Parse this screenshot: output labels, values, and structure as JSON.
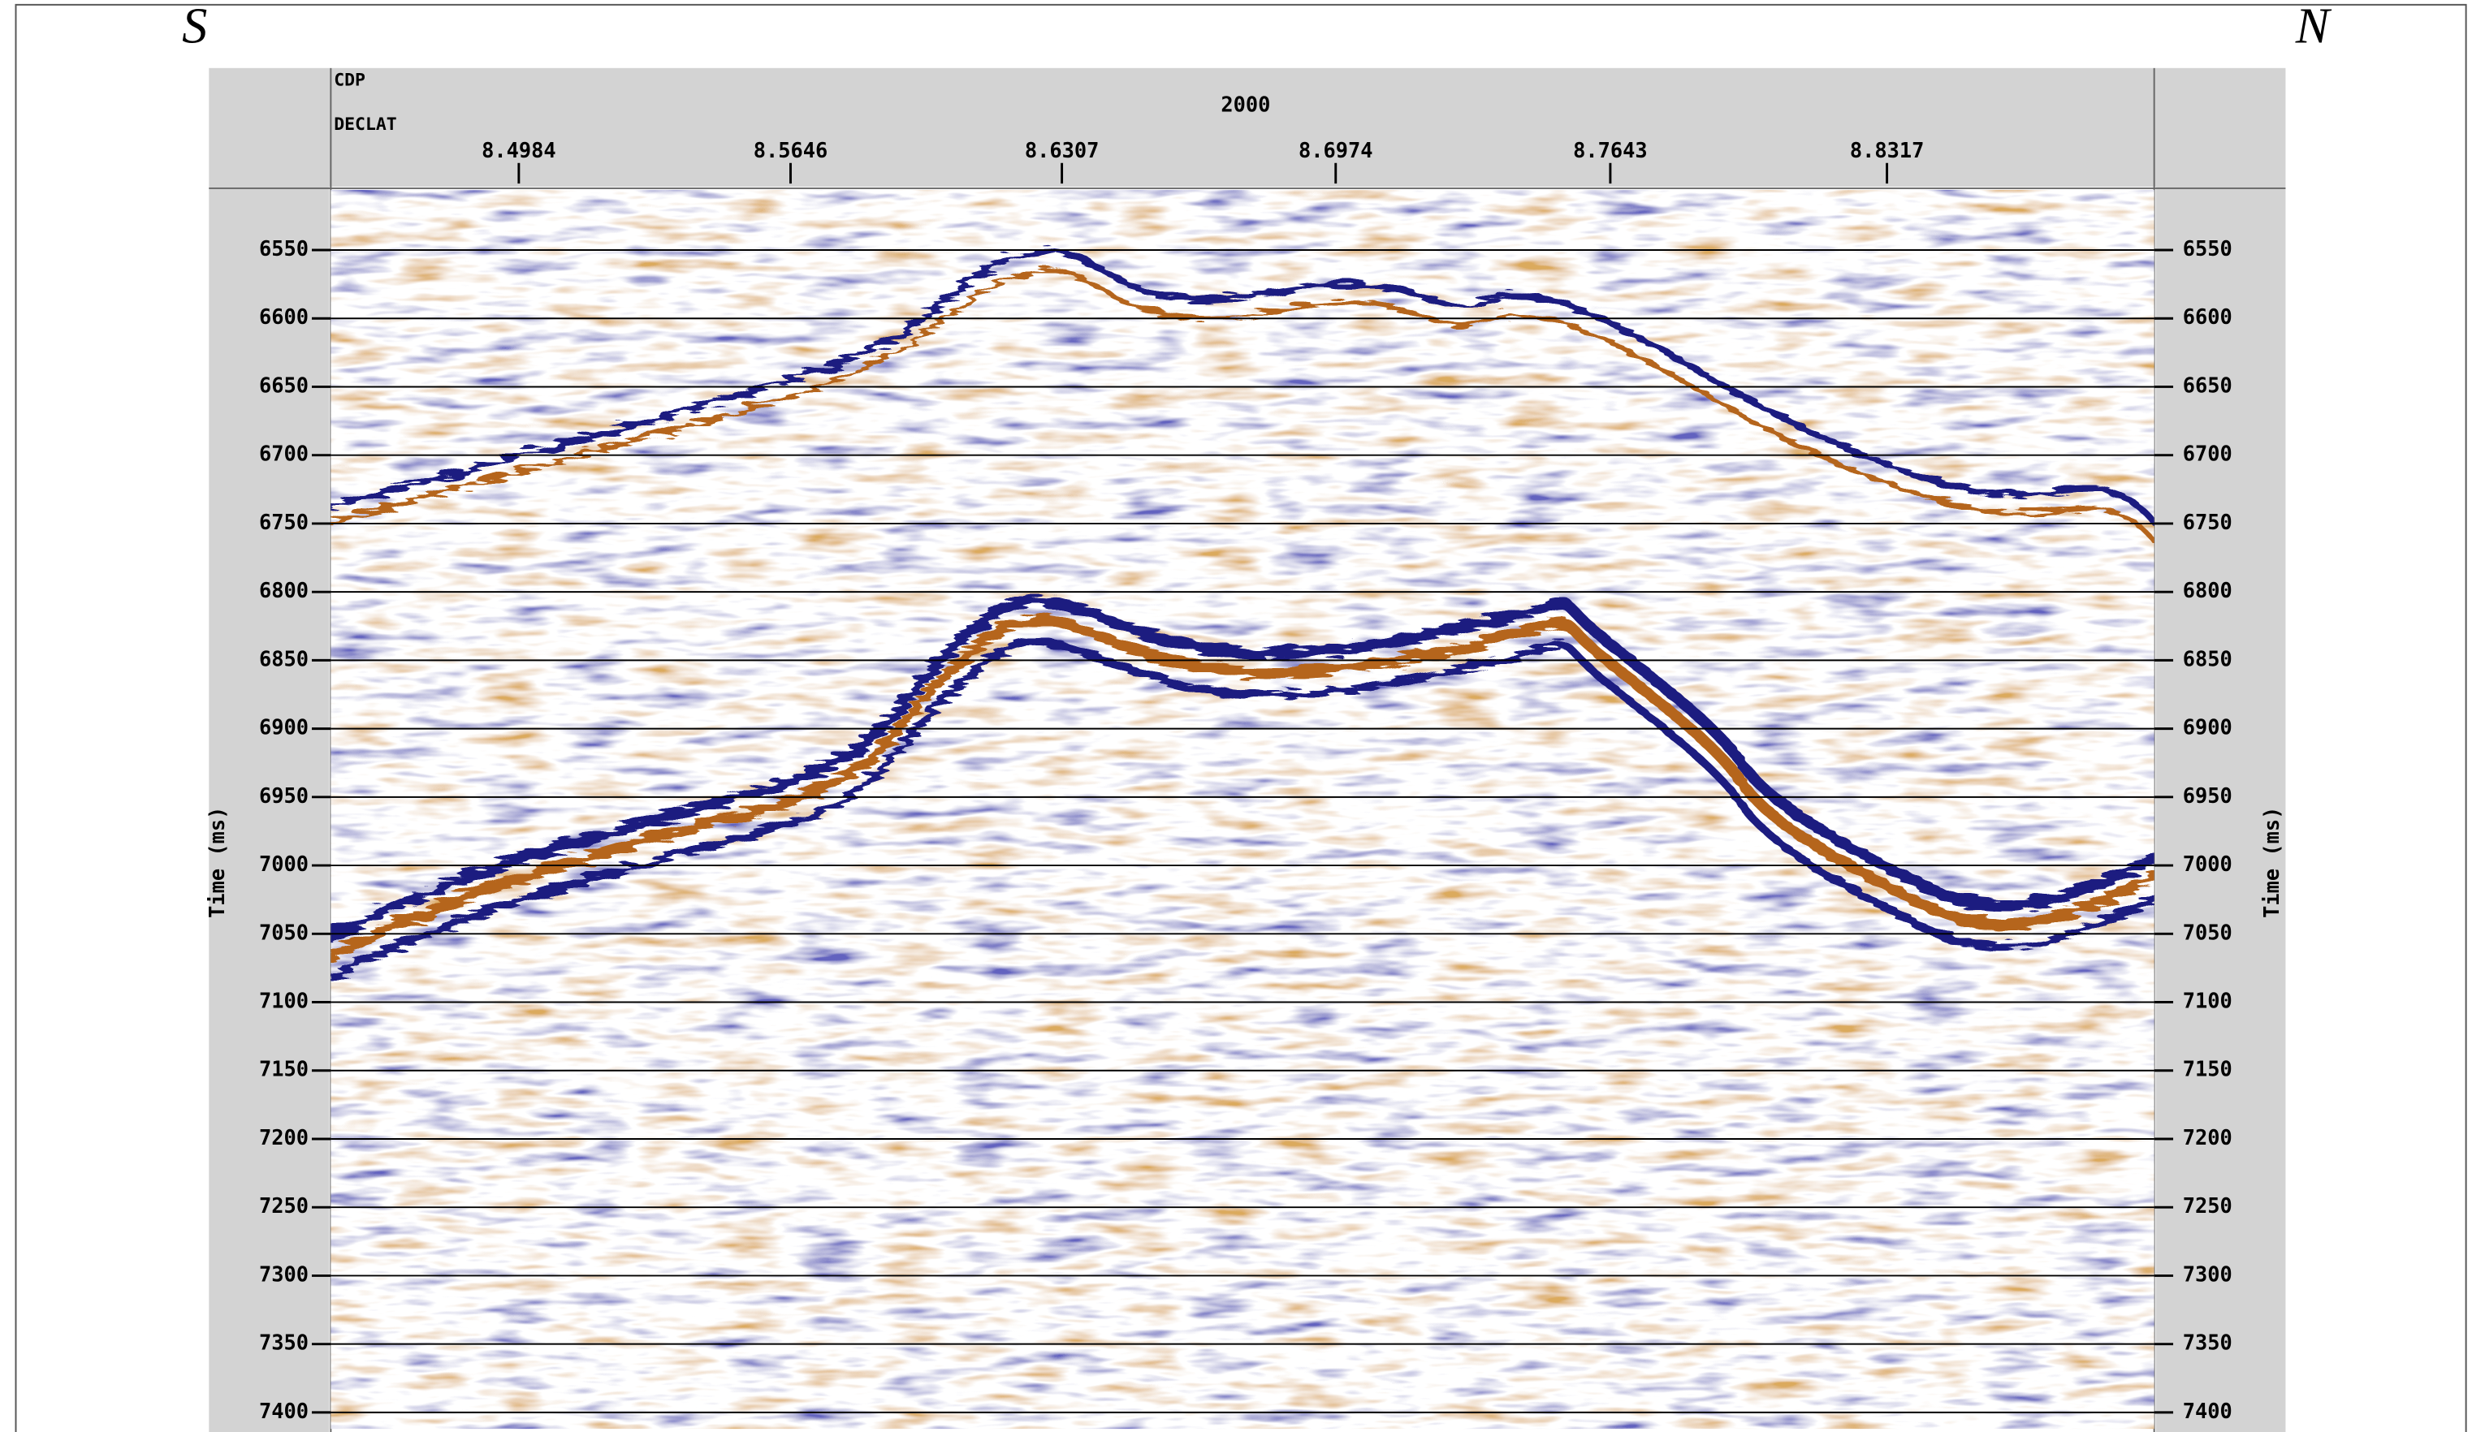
{
  "chart_data": {
    "type": "seismic",
    "left_label": "S",
    "right_label": "N",
    "top_axis_label": "CDP",
    "top_axis_tick": 2000,
    "x_label": "DECLAT",
    "y_label": "Time (ms)",
    "xlim": [
      8.4526,
      8.8968
    ],
    "xticks": [
      8.4984,
      8.5646,
      8.6307,
      8.6974,
      8.7643,
      8.8317
    ],
    "ylim": [
      6506,
      7412
    ],
    "yticks": [
      6550,
      6600,
      6650,
      6700,
      6750,
      6800,
      6850,
      6900,
      6950,
      7000,
      7050,
      7100,
      7150,
      7200,
      7250,
      7300,
      7350,
      7400
    ],
    "grid": true,
    "colors": {
      "positive": "#b5651d",
      "negative": "#1a1a80"
    }
  }
}
